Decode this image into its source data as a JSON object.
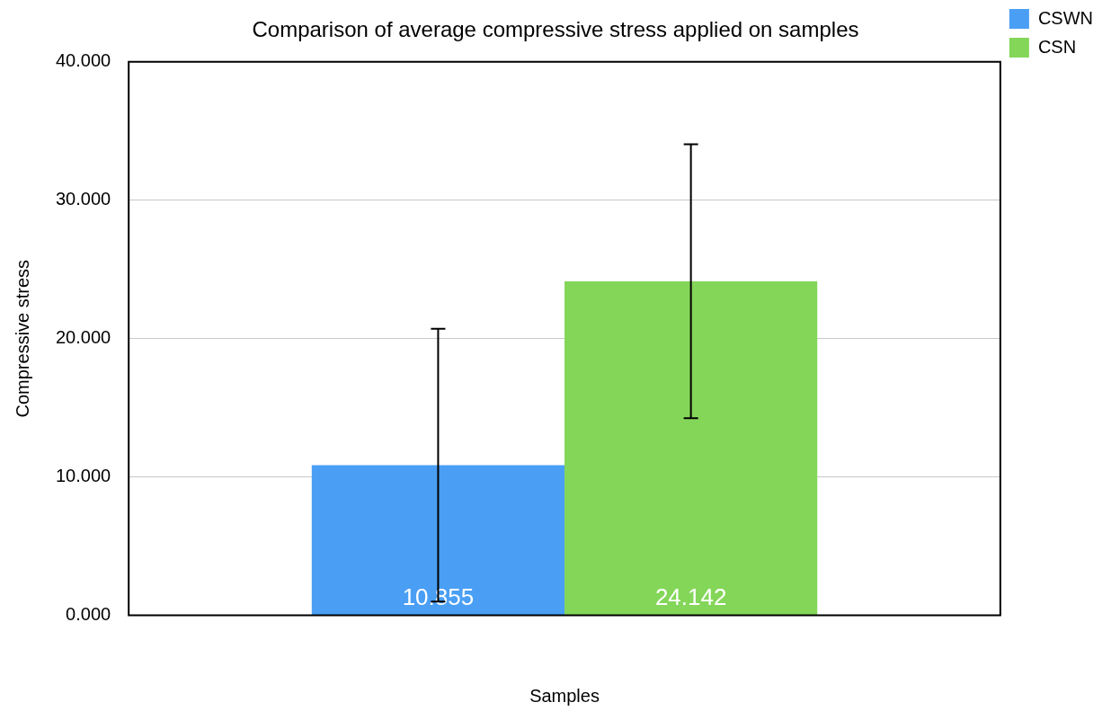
{
  "chart_data": {
    "type": "bar",
    "title": "Comparison of average compressive stress applied on samples",
    "xlabel": "Samples",
    "ylabel": "Compressive stress",
    "categories": [
      null
    ],
    "series": [
      {
        "name": "CSWN",
        "color": "#4a9ff5",
        "values": [
          10.855
        ],
        "errors": [
          9.85
        ]
      },
      {
        "name": "CSN",
        "color": "#84d659",
        "values": [
          24.142
        ],
        "errors": [
          9.9
        ]
      }
    ],
    "ylim": [
      0,
      40
    ],
    "yticks": [
      {
        "value": 0,
        "label": "0.000"
      },
      {
        "value": 10,
        "label": "10.000"
      },
      {
        "value": 20,
        "label": "20.000"
      },
      {
        "value": 30,
        "label": "30.000"
      },
      {
        "value": 40,
        "label": "40.000"
      }
    ],
    "grid": "y",
    "legend": "top right",
    "data_labels": true
  }
}
